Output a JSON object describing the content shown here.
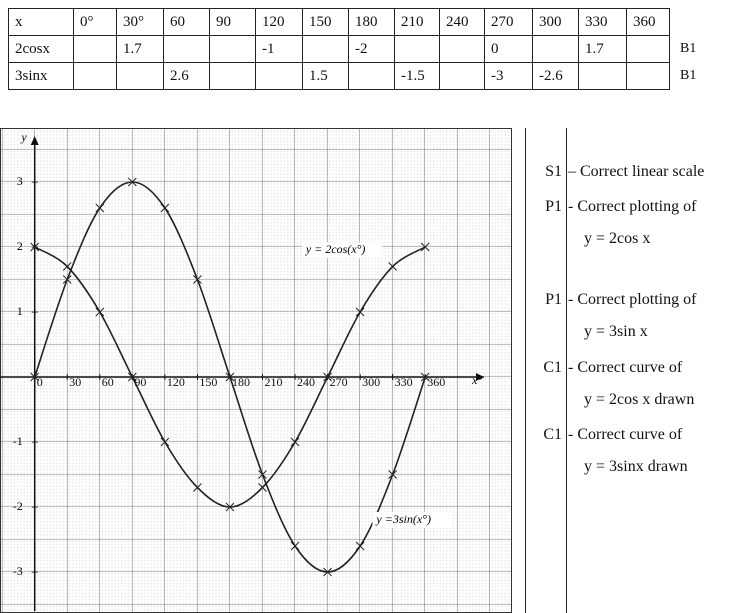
{
  "table": {
    "rows": [
      [
        "x",
        "0°",
        "30°",
        60,
        90,
        120,
        150,
        180,
        210,
        240,
        270,
        300,
        330,
        360
      ],
      [
        "2cosx",
        null,
        1.7,
        null,
        null,
        -1,
        null,
        -2,
        null,
        null,
        0,
        null,
        1.7,
        null
      ],
      [
        "3sinx",
        null,
        null,
        2.6,
        null,
        null,
        1.5,
        null,
        -1.5,
        null,
        -3,
        -2.6,
        null,
        null
      ]
    ],
    "marks": [
      "B1",
      "B1"
    ]
  },
  "chart_data": {
    "type": "line",
    "y_label": "y",
    "x_label": "x°",
    "x": [
      0,
      30,
      60,
      90,
      120,
      150,
      180,
      210,
      240,
      270,
      300,
      330,
      360
    ],
    "series": [
      {
        "name": "y = 2cos(x°)",
        "color": "#222222",
        "values": [
          2,
          1.7,
          1,
          0,
          -1,
          -1.7,
          -2,
          -1.7,
          -1,
          0,
          1,
          1.7,
          2
        ]
      },
      {
        "name": "y =3sin(x°)",
        "color": "#222222",
        "values": [
          0,
          1.5,
          2.6,
          3,
          2.6,
          1.5,
          0,
          -1.5,
          -2.6,
          -3,
          -2.6,
          -1.5,
          0
        ]
      }
    ],
    "xlim": [
      -32,
      440
    ],
    "ylim": [
      -3.6,
      3.8
    ],
    "xticks": [
      0,
      30,
      60,
      90,
      120,
      150,
      180,
      210,
      240,
      270,
      300,
      330,
      360
    ],
    "yticks": [
      -3,
      -2,
      -1,
      1,
      2,
      3
    ]
  },
  "marking": {
    "items": [
      {
        "code": "S1",
        "lines": [
          "– Correct linear scale"
        ]
      },
      {
        "code": "P1",
        "lines": [
          "- Correct plotting of",
          "y  = 2cos x"
        ]
      },
      {
        "code": "P1",
        "lines": [
          "- Correct plotting of",
          "y = 3sin x"
        ]
      },
      {
        "code": "C1",
        "lines": [
          "- Correct curve of",
          "y = 2cos x drawn"
        ]
      },
      {
        "code": "C1",
        "lines": [
          "- Correct curve of",
          "y = 3sinx drawn"
        ]
      }
    ]
  }
}
